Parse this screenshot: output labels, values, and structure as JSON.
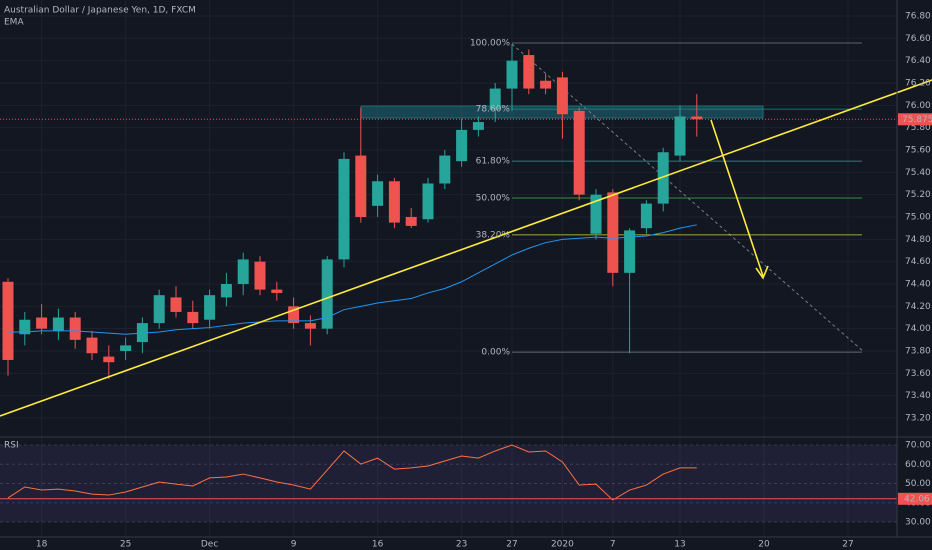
{
  "chart_data": [
    {
      "type": "candlestick",
      "title": "Australian Dollar / Japanese Yen, 1D, FXCM",
      "indicator": "EMA",
      "up_color": "#26a69a",
      "down_color": "#ef5350",
      "ema_color": "#2196f3",
      "open": [
        74.42,
        73.95,
        74.1,
        73.98,
        74.1,
        73.92,
        73.75,
        73.8,
        73.88,
        74.05,
        74.28,
        74.15,
        74.08,
        74.28,
        74.4,
        74.6,
        74.35,
        74.2,
        74.05,
        74.0,
        74.62,
        75.55,
        75.1,
        75.32,
        75.0,
        74.98,
        75.3,
        75.5,
        75.78,
        75.96,
        76.15,
        76.45,
        76.22,
        76.25,
        75.95,
        74.85,
        75.22,
        74.5,
        74.9,
        75.12,
        75.55,
        75.9
      ],
      "high": [
        74.45,
        74.15,
        74.22,
        74.18,
        74.15,
        73.98,
        73.85,
        73.92,
        74.1,
        74.35,
        74.38,
        74.25,
        74.35,
        74.5,
        74.68,
        74.65,
        74.42,
        74.28,
        74.12,
        74.65,
        75.58,
        75.98,
        75.38,
        75.35,
        75.08,
        75.35,
        75.6,
        75.88,
        75.9,
        76.2,
        76.55,
        76.5,
        76.28,
        76.3,
        75.98,
        75.25,
        75.25,
        74.9,
        75.15,
        75.62,
        76.0,
        76.1
      ],
      "low": [
        73.58,
        73.85,
        73.95,
        73.9,
        73.82,
        73.72,
        73.55,
        73.72,
        73.78,
        74.0,
        74.1,
        74.0,
        74.0,
        74.2,
        74.3,
        74.3,
        74.25,
        74.0,
        73.85,
        73.95,
        74.55,
        74.95,
        75.0,
        74.9,
        74.9,
        74.95,
        75.25,
        75.45,
        75.72,
        75.85,
        75.95,
        76.1,
        76.1,
        75.7,
        75.15,
        74.8,
        74.38,
        73.78,
        74.85,
        75.05,
        75.5,
        75.72
      ],
      "close": [
        73.72,
        74.08,
        74.0,
        74.1,
        73.9,
        73.78,
        73.7,
        73.85,
        74.05,
        74.3,
        74.15,
        74.05,
        74.3,
        74.4,
        74.62,
        74.35,
        74.32,
        74.05,
        74.0,
        74.62,
        75.52,
        75.0,
        75.32,
        74.95,
        74.92,
        75.3,
        75.55,
        75.78,
        75.85,
        76.15,
        76.4,
        76.15,
        76.15,
        75.92,
        75.2,
        75.2,
        74.5,
        74.88,
        75.12,
        75.58,
        75.9,
        75.875
      ],
      "ema": [
        73.97,
        73.97,
        73.98,
        73.98,
        73.98,
        73.97,
        73.96,
        73.95,
        73.96,
        73.97,
        73.99,
        74.0,
        74.01,
        74.03,
        74.05,
        74.06,
        74.07,
        74.07,
        74.07,
        74.1,
        74.17,
        74.2,
        74.23,
        74.25,
        74.27,
        74.32,
        74.36,
        74.42,
        74.5,
        74.58,
        74.66,
        74.72,
        74.77,
        74.8,
        74.81,
        74.82,
        74.81,
        74.82,
        74.83,
        74.86,
        74.9,
        74.93
      ],
      "price_line": 75.875,
      "fib_levels": [
        {
          "label": "100.00%",
          "price": 76.558,
          "color": "#787b86"
        },
        {
          "label": "78.60%",
          "price": 75.966,
          "color": "#089981"
        },
        {
          "label": "61.80%",
          "price": 75.5,
          "color": "#26a69a"
        },
        {
          "label": "50.00%",
          "price": 75.17,
          "color": "#4caf50"
        },
        {
          "label": "38.20%",
          "price": 74.84,
          "color": "#cddc39"
        },
        {
          "label": "0.00%",
          "price": 73.79,
          "color": "#787b86"
        }
      ],
      "ylim": [
        73.048,
        76.943
      ],
      "yticks": [
        {
          "value": 73.2,
          "label": "73.20"
        },
        {
          "value": 73.4,
          "label": "73.40"
        },
        {
          "value": 73.6,
          "label": "73.60"
        },
        {
          "value": 73.8,
          "label": "73.80"
        },
        {
          "value": 74.0,
          "label": "74.00"
        },
        {
          "value": 74.2,
          "label": "74.20"
        },
        {
          "value": 74.4,
          "label": "74.40"
        },
        {
          "value": 74.6,
          "label": "74.60"
        },
        {
          "value": 74.8,
          "label": "74.80"
        },
        {
          "value": 75.0,
          "label": "75.00"
        },
        {
          "value": 75.2,
          "label": "75.20"
        },
        {
          "value": 75.4,
          "label": "75.40"
        },
        {
          "value": 75.6,
          "label": "75.60"
        },
        {
          "value": 75.8,
          "label": "75.80"
        },
        {
          "value": 76.0,
          "label": "76.00"
        },
        {
          "value": 76.2,
          "label": "76.20"
        },
        {
          "value": 76.4,
          "label": "76.40"
        },
        {
          "value": 76.6,
          "label": "76.60"
        },
        {
          "value": 76.8,
          "label": "76.80"
        }
      ],
      "xticks": [
        {
          "value": 2,
          "label": "18"
        },
        {
          "value": 7,
          "label": "25"
        },
        {
          "value": 12,
          "label": "Dec"
        },
        {
          "value": 17,
          "label": "9"
        },
        {
          "value": 22,
          "label": "16"
        },
        {
          "value": 27,
          "label": "23"
        },
        {
          "value": 30,
          "label": "27"
        },
        {
          "value": 33,
          "label": "2020"
        },
        {
          "value": 36,
          "label": "7"
        },
        {
          "value": 40,
          "label": "13"
        },
        {
          "value": 45,
          "label": "20"
        },
        {
          "value": 50,
          "label": "27"
        }
      ],
      "grid": true
    },
    {
      "type": "line",
      "title": "RSI",
      "color": "#ff7043",
      "values": [
        42.5,
        48.2,
        46.6,
        47.1,
        46.1,
        44.5,
        44.0,
        45.6,
        48.2,
        50.8,
        49.7,
        48.7,
        52.9,
        53.4,
        54.9,
        52.9,
        50.8,
        49.2,
        47.1,
        57.0,
        66.9,
        60.1,
        63.2,
        57.5,
        58.1,
        59.1,
        61.7,
        64.3,
        63.2,
        66.9,
        70.0,
        66.4,
        66.9,
        61.2,
        49.2,
        49.7,
        41.4,
        46.6,
        49.2,
        54.9,
        58.1,
        58.1
      ],
      "hline": 42.06,
      "ylim": [
        23.25,
        74.16
      ],
      "yticks": [
        {
          "value": 30,
          "label": "30.00"
        },
        {
          "value": 40,
          "label": "40.00"
        },
        {
          "value": 50,
          "label": "50.00"
        },
        {
          "value": 60,
          "label": "60.00"
        },
        {
          "value": 70,
          "label": "70.00"
        }
      ],
      "band": [
        30,
        70
      ]
    }
  ]
}
